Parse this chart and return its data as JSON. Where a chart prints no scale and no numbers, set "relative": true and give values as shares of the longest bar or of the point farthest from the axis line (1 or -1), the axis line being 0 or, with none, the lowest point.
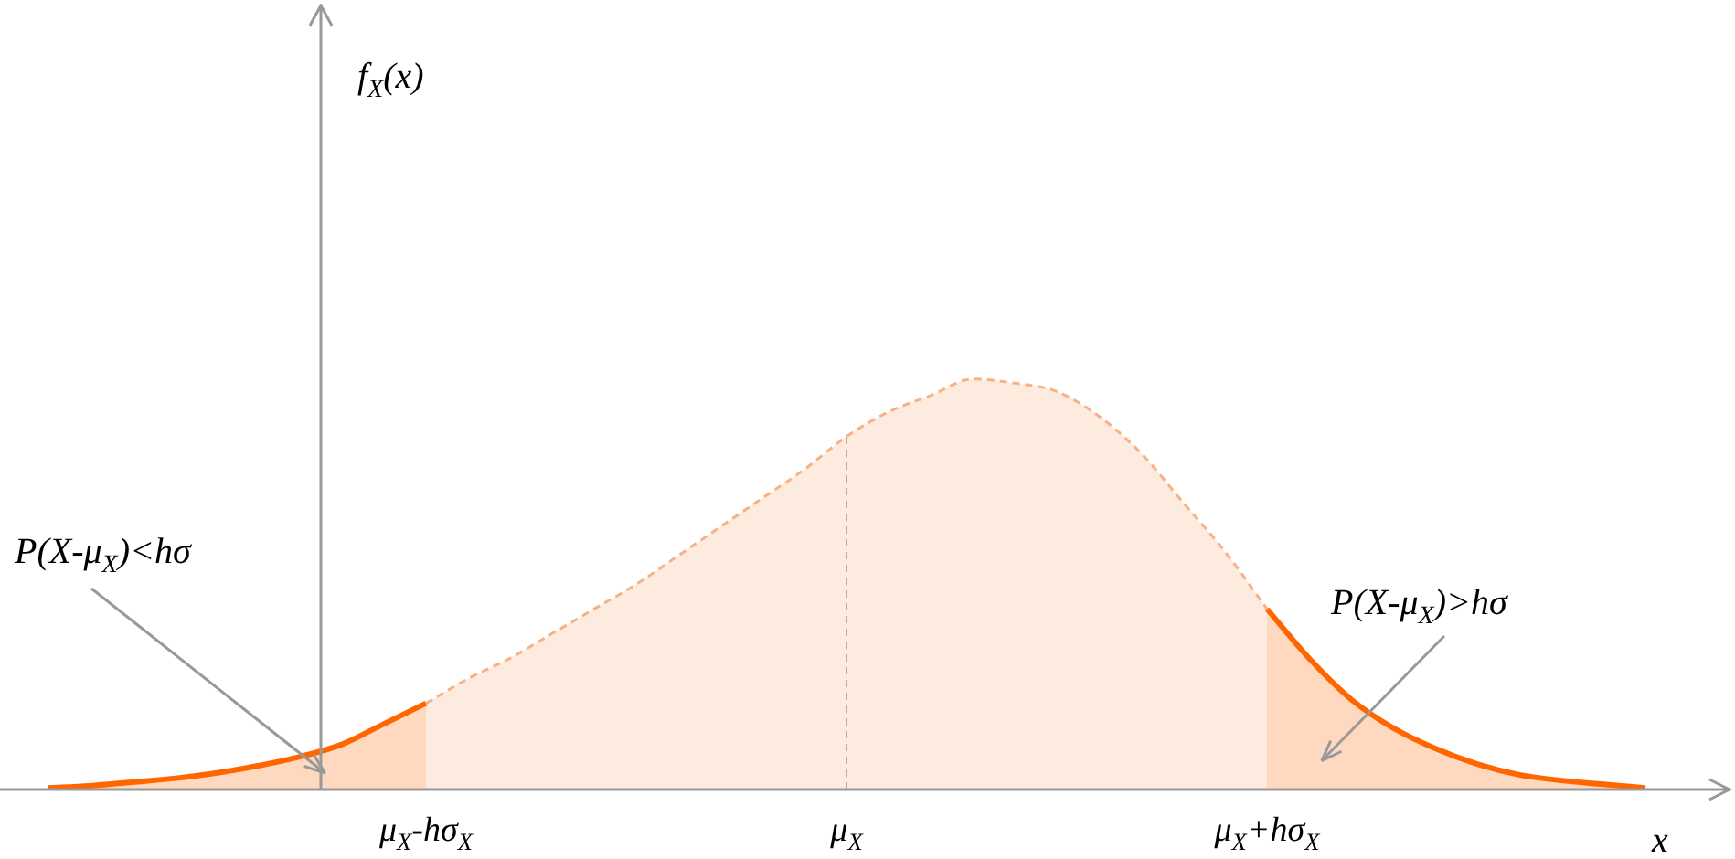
{
  "chart_data": {
    "type": "area",
    "relative": true,
    "xlabel": "x",
    "categories": [
      null,
      null,
      null,
      null,
      null,
      null,
      null,
      null,
      null,
      "μ$_{X}$-hσ$_{X}$",
      null,
      null,
      null,
      null,
      null,
      null,
      null,
      null,
      null,
      "μ$_{X}$",
      null,
      null,
      null,
      null,
      null,
      null,
      null,
      null,
      null,
      "μ$_{X}$+hσ$_{X}$",
      null,
      null,
      null,
      null,
      null,
      null,
      null,
      null,
      null
    ],
    "series": [
      {
        "color": "#ff6600",
        "line_style": "solid",
        "values": [
          0.004,
          0.009,
          0.018,
          0.027,
          0.04,
          0.058,
          0.08,
          0.11,
          0.16,
          0.21,
          null,
          null,
          null,
          null,
          null,
          null,
          null,
          null,
          null,
          null,
          null,
          null,
          null,
          null,
          null,
          null,
          null,
          null,
          null,
          null,
          null,
          null,
          null,
          null,
          null,
          null,
          null,
          null,
          null
        ]
      },
      {
        "color": "#f7b183",
        "line_style": "dashed",
        "values": [
          null,
          null,
          null,
          null,
          null,
          null,
          null,
          null,
          null,
          0.21,
          0.27,
          0.32,
          0.38,
          0.44,
          0.5,
          0.57,
          0.64,
          0.71,
          0.78,
          0.86,
          0.92,
          0.96,
          1,
          0.99,
          0.97,
          0.91,
          0.82,
          0.7,
          0.58,
          0.44,
          null,
          null,
          null,
          null,
          null,
          null,
          null,
          null,
          null
        ]
      },
      {
        "color": "#ff6600",
        "line_style": "solid",
        "values": [
          null,
          null,
          null,
          null,
          null,
          null,
          null,
          null,
          null,
          null,
          null,
          null,
          null,
          null,
          null,
          null,
          null,
          null,
          null,
          null,
          null,
          null,
          null,
          null,
          null,
          null,
          null,
          null,
          null,
          0.44,
          0.32,
          0.22,
          0.15,
          0.1,
          0.062,
          0.036,
          0.022,
          0.013,
          0.004
        ]
      }
    ],
    "ref_lines": [
      {
        "axis": "x",
        "value": "μ$_{X}$",
        "color": "#aaaaaa",
        "line_style": "dashed"
      }
    ],
    "annotations": [
      "P(X-μ$_{X}$)<hσ",
      "P(X-μ$_{X}$)>hσ",
      "f$_{X}$(x)"
    ],
    "grid": false,
    "legend": false,
    "marker": "none"
  }
}
